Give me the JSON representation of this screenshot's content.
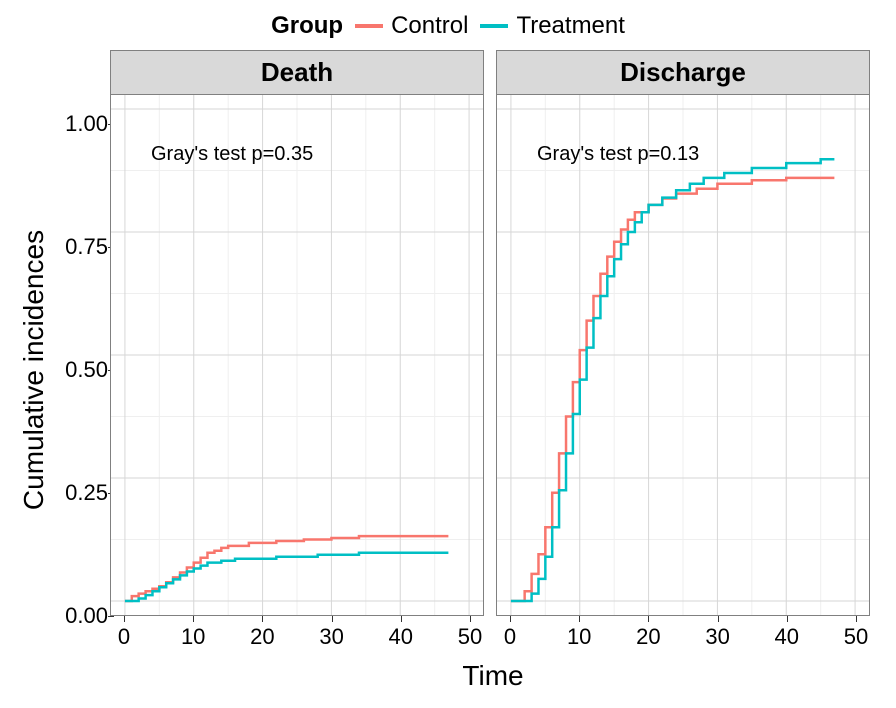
{
  "legend": {
    "title": "Group",
    "items": [
      {
        "label": "Control",
        "color": "#f8766d"
      },
      {
        "label": "Treatment",
        "color": "#00bfc4"
      }
    ]
  },
  "chart": {
    "type": "step-line",
    "y_title": "Cumulative incidences",
    "x_title": "Time",
    "xlim": [
      0,
      50
    ],
    "ylim": [
      0,
      1
    ],
    "x_ticks": [
      0,
      10,
      20,
      30,
      40,
      50
    ],
    "y_ticks": [
      0.0,
      0.25,
      0.5,
      0.75,
      1.0
    ],
    "x_minor": [
      5,
      15,
      25,
      35,
      45
    ],
    "y_minor": [
      0.125,
      0.375,
      0.625,
      0.875
    ],
    "background_color": "#ffffff",
    "grid_major_color": "#d6d6d6",
    "grid_minor_color": "#efefef",
    "border_color": "#808080",
    "strip_background": "#d9d9d9",
    "line_width": 2.5,
    "panels": [
      {
        "title": "Death",
        "annotation": "Gray's test p=0.35",
        "series": {
          "Control": [
            [
              0,
              0.0
            ],
            [
              1,
              0.0
            ],
            [
              1,
              0.01
            ],
            [
              2,
              0.01
            ],
            [
              2,
              0.015
            ],
            [
              3,
              0.015
            ],
            [
              3,
              0.02
            ],
            [
              4,
              0.02
            ],
            [
              4,
              0.025
            ],
            [
              5,
              0.025
            ],
            [
              5,
              0.03
            ],
            [
              6,
              0.03
            ],
            [
              6,
              0.038
            ],
            [
              7,
              0.038
            ],
            [
              7,
              0.048
            ],
            [
              8,
              0.048
            ],
            [
              8,
              0.058
            ],
            [
              9,
              0.058
            ],
            [
              9,
              0.068
            ],
            [
              10,
              0.068
            ],
            [
              10,
              0.078
            ],
            [
              11,
              0.078
            ],
            [
              11,
              0.088
            ],
            [
              12,
              0.088
            ],
            [
              12,
              0.098
            ],
            [
              13,
              0.098
            ],
            [
              13,
              0.102
            ],
            [
              14,
              0.102
            ],
            [
              14,
              0.108
            ],
            [
              15,
              0.108
            ],
            [
              15,
              0.112
            ],
            [
              18,
              0.112
            ],
            [
              18,
              0.118
            ],
            [
              22,
              0.118
            ],
            [
              22,
              0.122
            ],
            [
              26,
              0.122
            ],
            [
              26,
              0.125
            ],
            [
              30,
              0.125
            ],
            [
              30,
              0.128
            ],
            [
              34,
              0.128
            ],
            [
              34,
              0.132
            ],
            [
              47,
              0.132
            ]
          ],
          "Treatment": [
            [
              0,
              0.0
            ],
            [
              2,
              0.0
            ],
            [
              2,
              0.005
            ],
            [
              3,
              0.005
            ],
            [
              3,
              0.012
            ],
            [
              4,
              0.012
            ],
            [
              4,
              0.02
            ],
            [
              5,
              0.02
            ],
            [
              5,
              0.028
            ],
            [
              6,
              0.028
            ],
            [
              6,
              0.036
            ],
            [
              7,
              0.036
            ],
            [
              7,
              0.044
            ],
            [
              8,
              0.044
            ],
            [
              8,
              0.052
            ],
            [
              9,
              0.052
            ],
            [
              9,
              0.06
            ],
            [
              10,
              0.06
            ],
            [
              10,
              0.066
            ],
            [
              11,
              0.066
            ],
            [
              11,
              0.072
            ],
            [
              12,
              0.072
            ],
            [
              12,
              0.078
            ],
            [
              14,
              0.078
            ],
            [
              14,
              0.082
            ],
            [
              16,
              0.082
            ],
            [
              16,
              0.086
            ],
            [
              22,
              0.086
            ],
            [
              22,
              0.09
            ],
            [
              28,
              0.09
            ],
            [
              28,
              0.094
            ],
            [
              34,
              0.094
            ],
            [
              34,
              0.098
            ],
            [
              47,
              0.098
            ]
          ]
        }
      },
      {
        "title": "Discharge",
        "annotation": "Gray's test p=0.13",
        "series": {
          "Control": [
            [
              0,
              0.0
            ],
            [
              2,
              0.0
            ],
            [
              2,
              0.02
            ],
            [
              3,
              0.02
            ],
            [
              3,
              0.055
            ],
            [
              4,
              0.055
            ],
            [
              4,
              0.095
            ],
            [
              5,
              0.095
            ],
            [
              5,
              0.15
            ],
            [
              6,
              0.15
            ],
            [
              6,
              0.22
            ],
            [
              7,
              0.22
            ],
            [
              7,
              0.3
            ],
            [
              8,
              0.3
            ],
            [
              8,
              0.375
            ],
            [
              9,
              0.375
            ],
            [
              9,
              0.445
            ],
            [
              10,
              0.445
            ],
            [
              10,
              0.51
            ],
            [
              11,
              0.51
            ],
            [
              11,
              0.57
            ],
            [
              12,
              0.57
            ],
            [
              12,
              0.62
            ],
            [
              13,
              0.62
            ],
            [
              13,
              0.665
            ],
            [
              14,
              0.665
            ],
            [
              14,
              0.7
            ],
            [
              15,
              0.7
            ],
            [
              15,
              0.73
            ],
            [
              16,
              0.73
            ],
            [
              16,
              0.755
            ],
            [
              17,
              0.755
            ],
            [
              17,
              0.775
            ],
            [
              18,
              0.775
            ],
            [
              18,
              0.79
            ],
            [
              20,
              0.79
            ],
            [
              20,
              0.805
            ],
            [
              22,
              0.805
            ],
            [
              22,
              0.818
            ],
            [
              24,
              0.818
            ],
            [
              24,
              0.828
            ],
            [
              27,
              0.828
            ],
            [
              27,
              0.838
            ],
            [
              30,
              0.838
            ],
            [
              30,
              0.848
            ],
            [
              35,
              0.848
            ],
            [
              35,
              0.855
            ],
            [
              40,
              0.855
            ],
            [
              40,
              0.86
            ],
            [
              47,
              0.86
            ]
          ],
          "Treatment": [
            [
              0,
              0.0
            ],
            [
              3,
              0.0
            ],
            [
              3,
              0.015
            ],
            [
              4,
              0.015
            ],
            [
              4,
              0.045
            ],
            [
              5,
              0.045
            ],
            [
              5,
              0.09
            ],
            [
              6,
              0.09
            ],
            [
              6,
              0.15
            ],
            [
              7,
              0.15
            ],
            [
              7,
              0.225
            ],
            [
              8,
              0.225
            ],
            [
              8,
              0.3
            ],
            [
              9,
              0.3
            ],
            [
              9,
              0.38
            ],
            [
              10,
              0.38
            ],
            [
              10,
              0.45
            ],
            [
              11,
              0.45
            ],
            [
              11,
              0.515
            ],
            [
              12,
              0.515
            ],
            [
              12,
              0.575
            ],
            [
              13,
              0.575
            ],
            [
              13,
              0.62
            ],
            [
              14,
              0.62
            ],
            [
              14,
              0.66
            ],
            [
              15,
              0.66
            ],
            [
              15,
              0.695
            ],
            [
              16,
              0.695
            ],
            [
              16,
              0.725
            ],
            [
              17,
              0.725
            ],
            [
              17,
              0.75
            ],
            [
              18,
              0.75
            ],
            [
              18,
              0.77
            ],
            [
              19,
              0.77
            ],
            [
              19,
              0.79
            ],
            [
              20,
              0.79
            ],
            [
              20,
              0.805
            ],
            [
              22,
              0.805
            ],
            [
              22,
              0.82
            ],
            [
              24,
              0.82
            ],
            [
              24,
              0.835
            ],
            [
              26,
              0.835
            ],
            [
              26,
              0.848
            ],
            [
              28,
              0.848
            ],
            [
              28,
              0.86
            ],
            [
              31,
              0.86
            ],
            [
              31,
              0.87
            ],
            [
              35,
              0.87
            ],
            [
              35,
              0.88
            ],
            [
              40,
              0.88
            ],
            [
              40,
              0.89
            ],
            [
              45,
              0.89
            ],
            [
              45,
              0.898
            ],
            [
              47,
              0.898
            ]
          ]
        }
      }
    ]
  }
}
